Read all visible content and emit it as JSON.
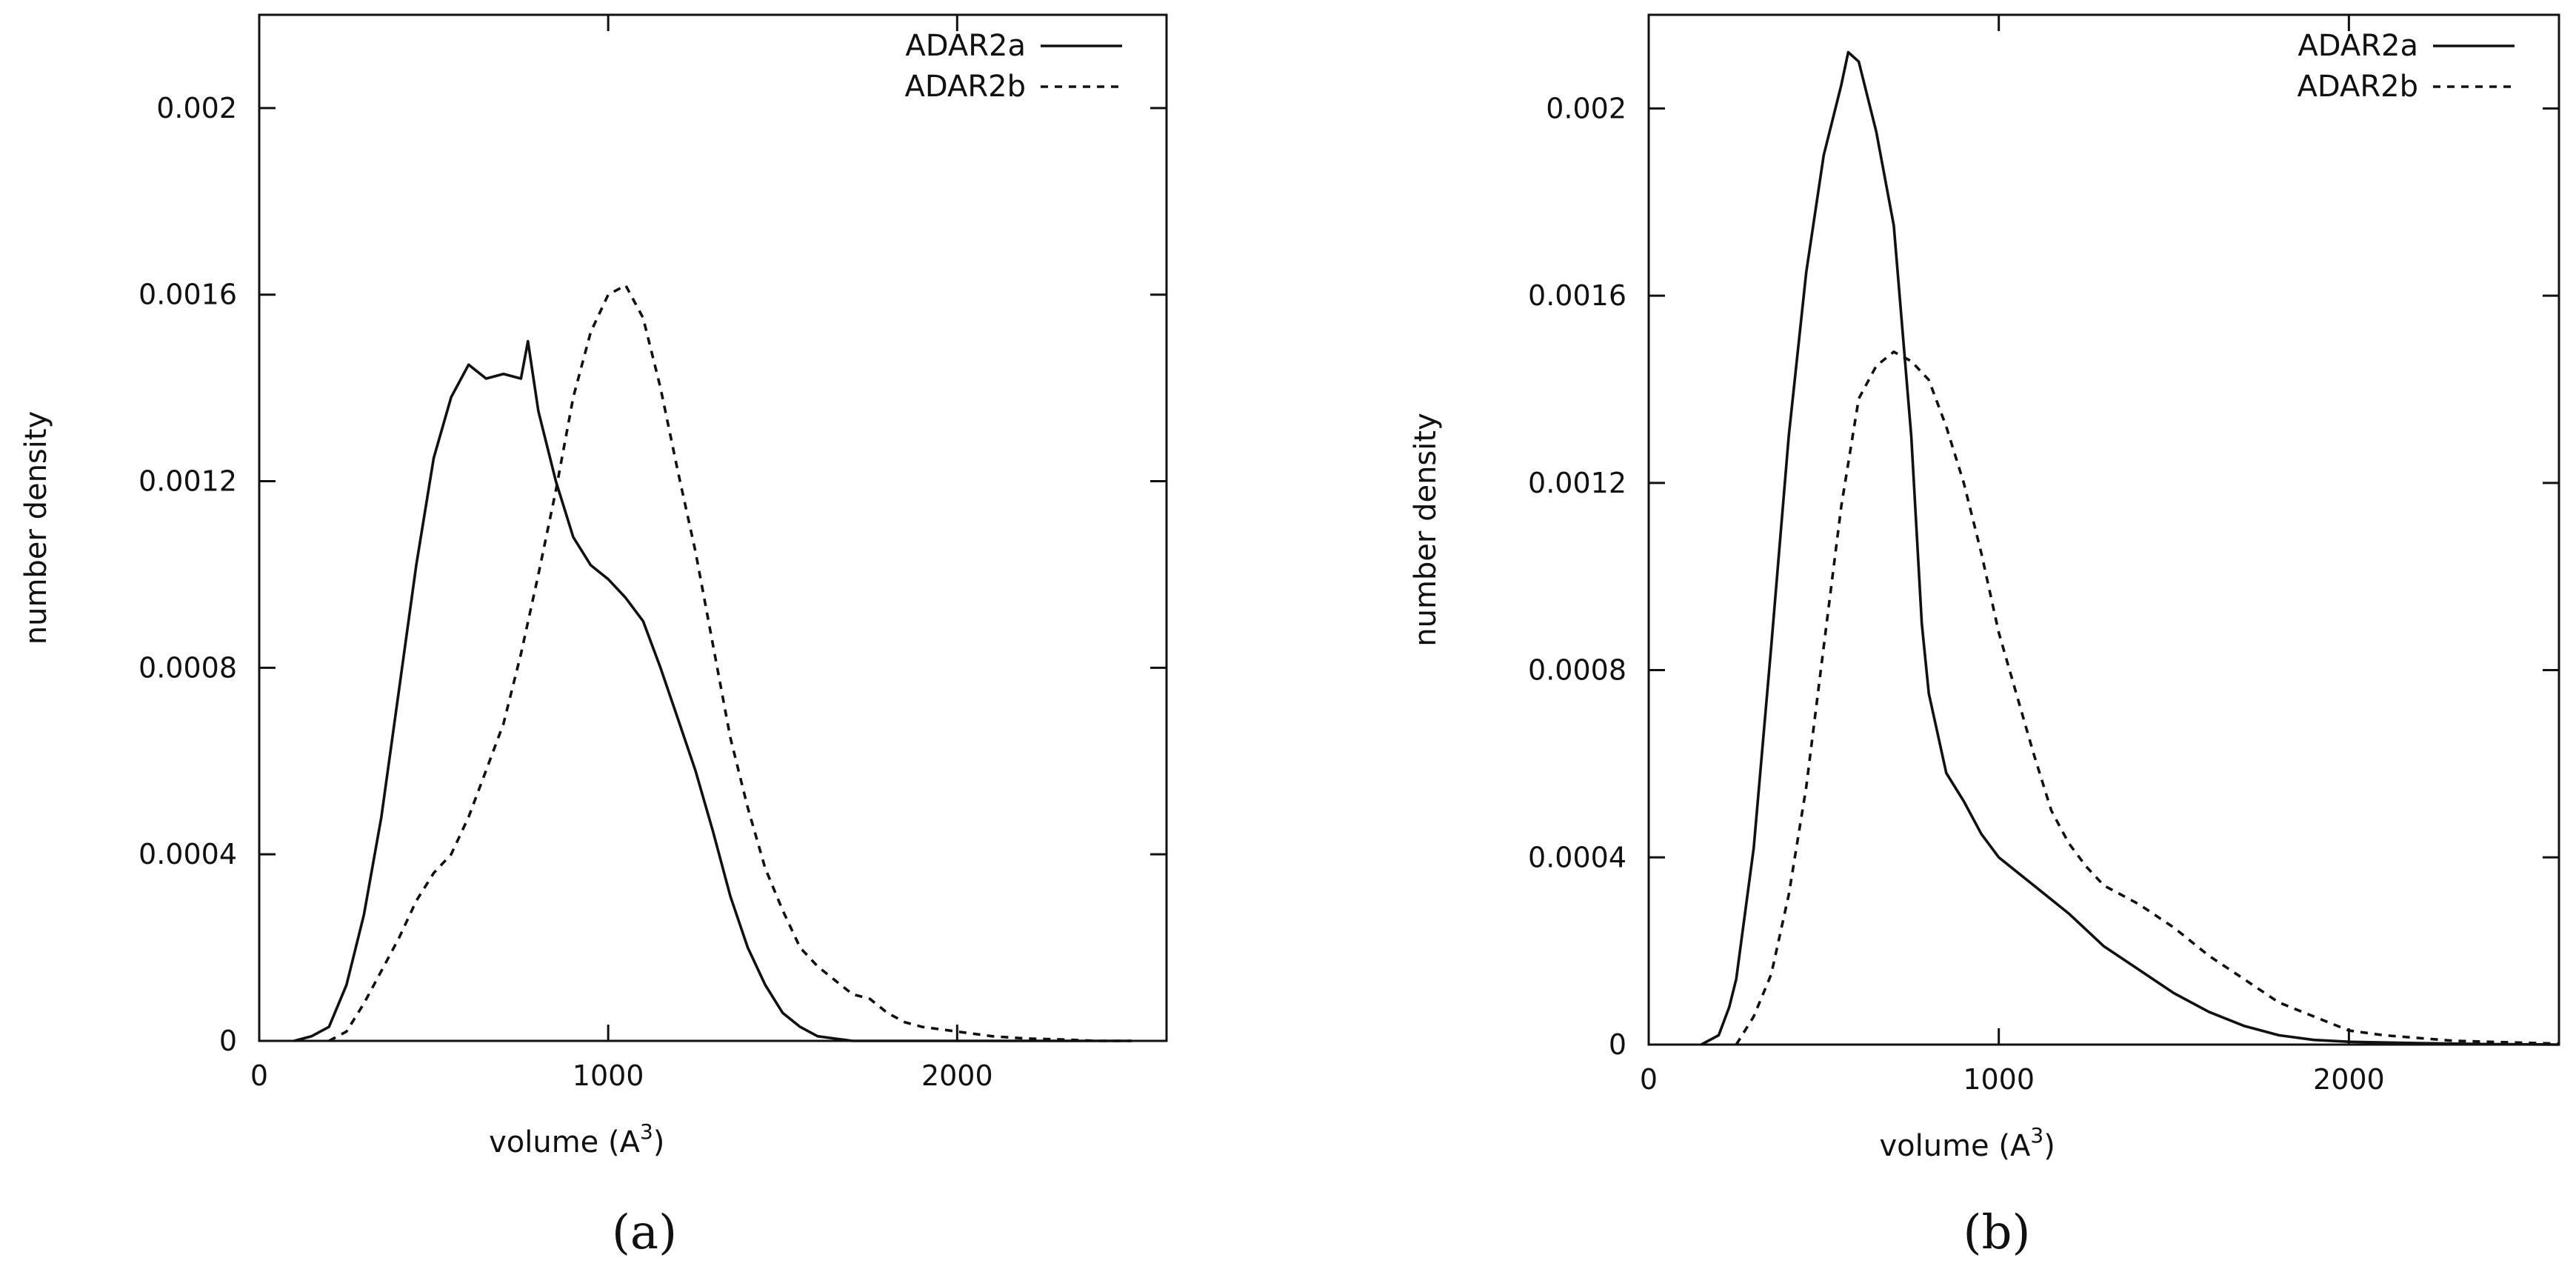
{
  "chart_data": [
    {
      "type": "line",
      "panel_label": "(a)",
      "xlabel": "volume (A",
      "xlabel_sup": "3",
      "xlabel_suffix": ")",
      "ylabel": "number density",
      "xlim": [
        0,
        2600
      ],
      "ylim": [
        0,
        0.0022
      ],
      "xticks": [
        0,
        1000,
        2000
      ],
      "xtick_labels": [
        "0",
        "1000",
        "2000"
      ],
      "yticks": [
        0,
        0.0004,
        0.0008,
        0.0012,
        0.0016,
        0.002
      ],
      "ytick_labels": [
        "0",
        "0.0004",
        "0.0008",
        "0.0012",
        "0.0016",
        "0.002"
      ],
      "legend_position": "top-right",
      "series": [
        {
          "name": "ADAR2a",
          "style": "solid",
          "x": [
            100,
            150,
            200,
            250,
            300,
            350,
            400,
            450,
            500,
            550,
            600,
            650,
            700,
            750,
            770,
            800,
            850,
            900,
            950,
            1000,
            1050,
            1100,
            1150,
            1200,
            1250,
            1300,
            1350,
            1400,
            1450,
            1500,
            1550,
            1600,
            1650,
            1700,
            1800,
            2000,
            2500
          ],
          "y": [
            0,
            1e-05,
            3e-05,
            0.00012,
            0.00027,
            0.00048,
            0.00075,
            0.00102,
            0.00125,
            0.00138,
            0.00145,
            0.00142,
            0.00143,
            0.00142,
            0.0015,
            0.00135,
            0.0012,
            0.00108,
            0.00102,
            0.00099,
            0.00095,
            0.0009,
            0.0008,
            0.00069,
            0.00058,
            0.00045,
            0.00031,
            0.0002,
            0.00012,
            6e-05,
            3e-05,
            1e-05,
            5e-06,
            0,
            0,
            0,
            0
          ]
        },
        {
          "name": "ADAR2b",
          "style": "dashed",
          "x": [
            200,
            250,
            300,
            350,
            400,
            450,
            500,
            550,
            600,
            650,
            700,
            750,
            800,
            850,
            900,
            950,
            1000,
            1050,
            1100,
            1150,
            1200,
            1250,
            1300,
            1350,
            1400,
            1450,
            1500,
            1550,
            1600,
            1650,
            1700,
            1750,
            1800,
            1850,
            1900,
            2000,
            2100,
            2200,
            2300,
            2400,
            2500
          ],
          "y": [
            0,
            2e-05,
            8e-05,
            0.00015,
            0.00022,
            0.0003,
            0.00036,
            0.0004,
            0.00048,
            0.00058,
            0.00068,
            0.00083,
            0.001,
            0.00118,
            0.00138,
            0.00152,
            0.0016,
            0.00162,
            0.00155,
            0.0014,
            0.00122,
            0.00105,
            0.00085,
            0.00065,
            0.0005,
            0.00037,
            0.00028,
            0.0002,
            0.00016,
            0.00013,
            0.0001,
            9e-05,
            6e-05,
            4e-05,
            3e-05,
            2e-05,
            1e-05,
            5e-06,
            3e-06,
            0,
            0
          ]
        }
      ]
    },
    {
      "type": "line",
      "panel_label": "(b)",
      "xlabel": "volume (A",
      "xlabel_sup": "3",
      "xlabel_suffix": ")",
      "ylabel": "number density",
      "xlim": [
        0,
        2600
      ],
      "ylim": [
        0,
        0.0022
      ],
      "xticks": [
        0,
        1000,
        2000
      ],
      "xtick_labels": [
        "0",
        "1000",
        "2000"
      ],
      "yticks": [
        0,
        0.0004,
        0.0008,
        0.0012,
        0.0016,
        0.002
      ],
      "ytick_labels": [
        "0",
        "0.0004",
        "0.0008",
        "0.0012",
        "0.0016",
        "0.002"
      ],
      "legend_position": "top-right",
      "series": [
        {
          "name": "ADAR2a",
          "style": "solid",
          "x": [
            150,
            200,
            230,
            250,
            300,
            350,
            400,
            450,
            500,
            550,
            570,
            600,
            650,
            700,
            750,
            780,
            800,
            850,
            900,
            950,
            1000,
            1100,
            1200,
            1300,
            1400,
            1500,
            1600,
            1700,
            1800,
            1900,
            2000,
            2200,
            2400,
            2600
          ],
          "y": [
            0,
            2e-05,
            8e-05,
            0.00014,
            0.00042,
            0.00085,
            0.0013,
            0.00165,
            0.0019,
            0.00205,
            0.00212,
            0.0021,
            0.00195,
            0.00175,
            0.0013,
            0.0009,
            0.00075,
            0.00058,
            0.00052,
            0.00045,
            0.0004,
            0.00034,
            0.00028,
            0.00021,
            0.00016,
            0.00011,
            7e-05,
            4e-05,
            2e-05,
            1e-05,
            6e-06,
            3e-06,
            1e-06,
            0
          ]
        },
        {
          "name": "ADAR2b",
          "style": "dashed",
          "x": [
            250,
            300,
            350,
            400,
            450,
            500,
            550,
            600,
            650,
            700,
            750,
            800,
            850,
            900,
            950,
            1000,
            1050,
            1100,
            1150,
            1200,
            1250,
            1300,
            1400,
            1500,
            1600,
            1700,
            1800,
            1900,
            2000,
            2100,
            2300,
            2500,
            2600
          ],
          "y": [
            0,
            6e-05,
            0.00015,
            0.00032,
            0.00055,
            0.00085,
            0.00115,
            0.00138,
            0.00145,
            0.00148,
            0.00146,
            0.00142,
            0.00132,
            0.0012,
            0.00105,
            0.00088,
            0.00075,
            0.00062,
            0.0005,
            0.00043,
            0.00038,
            0.00034,
            0.0003,
            0.00025,
            0.00019,
            0.00014,
            9e-05,
            6e-05,
            3e-05,
            2e-05,
            8e-06,
            4e-06,
            2e-06
          ]
        }
      ]
    }
  ]
}
